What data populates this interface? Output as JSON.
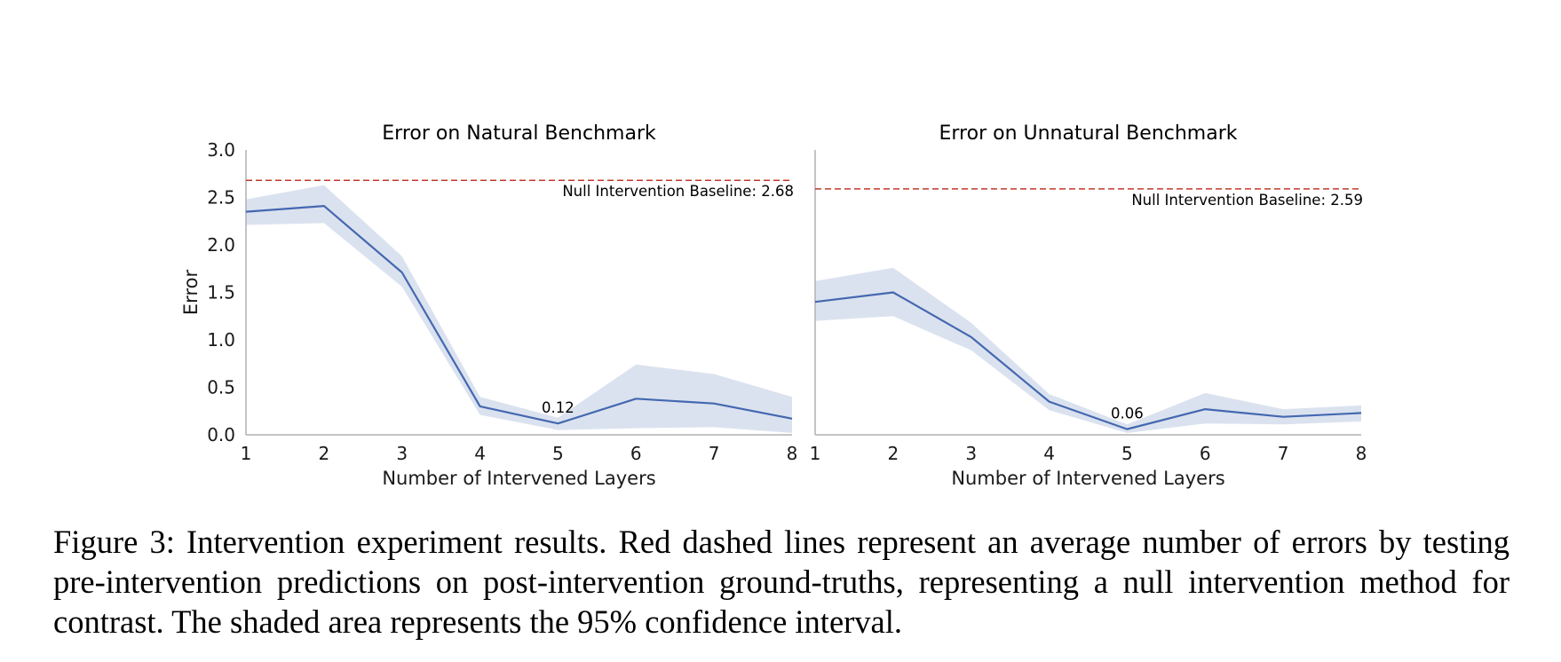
{
  "chart_data": [
    {
      "type": "line",
      "title": "Error on Natural Benchmark",
      "xlabel": "Number of Intervened Layers",
      "ylabel": "Error",
      "x": [
        1,
        2,
        3,
        4,
        5,
        6,
        7,
        8
      ],
      "xlim": [
        1,
        8
      ],
      "ylim": [
        0,
        3.0
      ],
      "yticks": [
        "0.0",
        "0.5",
        "1.0",
        "1.5",
        "2.0",
        "2.5",
        "3.0"
      ],
      "xticks": [
        "1",
        "2",
        "3",
        "4",
        "5",
        "6",
        "7",
        "8"
      ],
      "grid": false,
      "series": [
        {
          "values": [
            2.35,
            2.41,
            1.71,
            0.3,
            0.12,
            0.38,
            0.33,
            0.17
          ],
          "ci_upper": [
            2.48,
            2.63,
            1.88,
            0.4,
            0.18,
            0.74,
            0.64,
            0.4
          ],
          "ci_lower": [
            2.21,
            2.23,
            1.56,
            0.21,
            0.05,
            0.07,
            0.08,
            0.02
          ]
        }
      ],
      "baseline": {
        "value": 2.68,
        "label": "Null Intervention Baseline: 2.68"
      },
      "annotation": {
        "x": 5,
        "y": 0.12,
        "text": "0.12"
      }
    },
    {
      "type": "line",
      "title": "Error on Unnatural Benchmark",
      "xlabel": "Number of Intervened Layers",
      "ylabel": "",
      "x": [
        1,
        2,
        3,
        4,
        5,
        6,
        7,
        8
      ],
      "xlim": [
        1,
        8
      ],
      "ylim": [
        0,
        3.0
      ],
      "xticks": [
        "1",
        "2",
        "3",
        "4",
        "5",
        "6",
        "7",
        "8"
      ],
      "grid": false,
      "series": [
        {
          "values": [
            1.4,
            1.5,
            1.03,
            0.35,
            0.06,
            0.27,
            0.19,
            0.23
          ],
          "ci_upper": [
            1.62,
            1.76,
            1.18,
            0.43,
            0.11,
            0.44,
            0.27,
            0.31
          ],
          "ci_lower": [
            1.2,
            1.25,
            0.89,
            0.26,
            0.02,
            0.12,
            0.11,
            0.14
          ]
        }
      ],
      "baseline": {
        "value": 2.59,
        "label": "Null Intervention Baseline: 2.59"
      },
      "annotation": {
        "x": 5,
        "y": 0.06,
        "text": "0.06"
      }
    }
  ],
  "colors": {
    "line": "#4468b0",
    "band": "#dbe2ef",
    "baseline": "#c0392b",
    "axis": "#b0b0b0",
    "text": "#1a1a1a"
  },
  "caption": "Figure 3: Intervention experiment results. Red dashed lines represent an average number of errors by testing pre-intervention predictions on post-intervention ground-truths, representing a null intervention method for contrast. The shaded area represents the 95% confidence interval."
}
